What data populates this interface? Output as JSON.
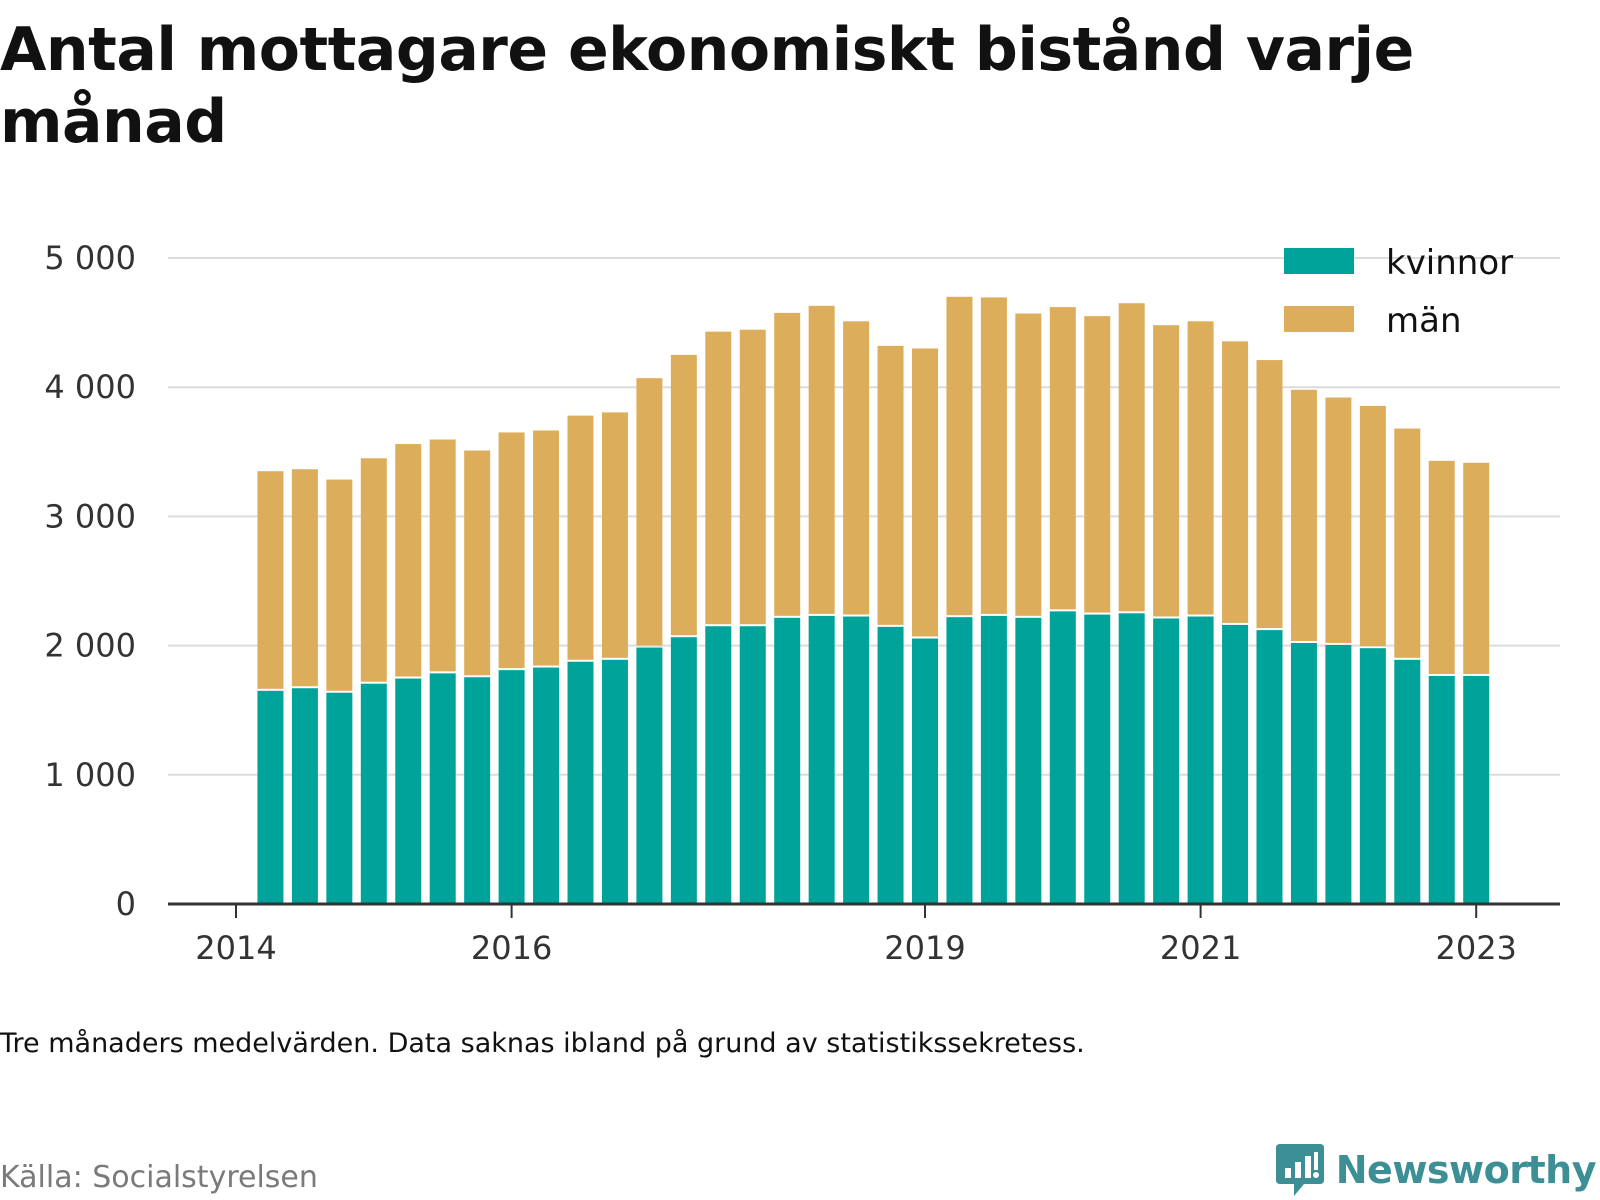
{
  "title": "Antal mottagare ekonomiskt bistånd varje månad",
  "note": "Tre månaders medelvärden. Data saknas ibland på grund av statistikssekretess.",
  "source": "Källa: Socialstyrelsen",
  "brand": "Newsworthy",
  "colors": {
    "kvinnor": "#00a39a",
    "man": "#dcae5c",
    "brand": "#3b8f95"
  },
  "chart_data": {
    "type": "bar",
    "stacked": true,
    "grid": true,
    "legend_position": "top-right",
    "ylim": [
      0,
      5000
    ],
    "yticks": [
      0,
      1000,
      2000,
      3000,
      4000,
      5000
    ],
    "ytick_labels": [
      "0",
      "1 000",
      "2 000",
      "3 000",
      "4 000",
      "5 000"
    ],
    "xticks": [
      "2014",
      "2016",
      "2019",
      "2021",
      "2023"
    ],
    "categories": [
      "2014-Q2",
      "2014-Q3",
      "2014-Q4",
      "2015-Q1",
      "2015-Q2",
      "2015-Q3",
      "2015-Q4",
      "2016-Q1",
      "2016-Q2",
      "2016-Q3",
      "2016-Q4",
      "2017-Q1",
      "2017-Q2",
      "2017-Q3",
      "2017-Q4",
      "2018-Q1",
      "2018-Q2",
      "2018-Q3",
      "2018-Q4",
      "2019-Q1",
      "2019-Q2",
      "2019-Q3",
      "2019-Q4",
      "2020-Q1",
      "2020-Q2",
      "2020-Q3",
      "2020-Q4",
      "2021-Q1",
      "2021-Q2",
      "2021-Q3",
      "2021-Q4",
      "2022-Q1",
      "2022-Q2",
      "2022-Q3",
      "2022-Q4",
      "2023-Q1"
    ],
    "series": [
      {
        "name": "kvinnor",
        "values": [
          1650,
          1670,
          1635,
          1705,
          1745,
          1785,
          1755,
          1810,
          1830,
          1875,
          1890,
          1985,
          2065,
          2150,
          2150,
          2215,
          2230,
          2225,
          2145,
          2055,
          2220,
          2230,
          2215,
          2265,
          2240,
          2250,
          2210,
          2225,
          2160,
          2120,
          2020,
          2005,
          1980,
          1890,
          1765,
          1765
        ]
      },
      {
        "name": "män",
        "values": [
          1700,
          1695,
          1650,
          1745,
          1815,
          1810,
          1755,
          1840,
          1835,
          1905,
          1915,
          2085,
          2185,
          2280,
          2295,
          2360,
          2400,
          2285,
          2175,
          2245,
          2480,
          2465,
          2355,
          2355,
          2310,
          2400,
          2270,
          2285,
          2195,
          2090,
          1960,
          1915,
          1875,
          1790,
          1665,
          1650
        ]
      }
    ]
  }
}
